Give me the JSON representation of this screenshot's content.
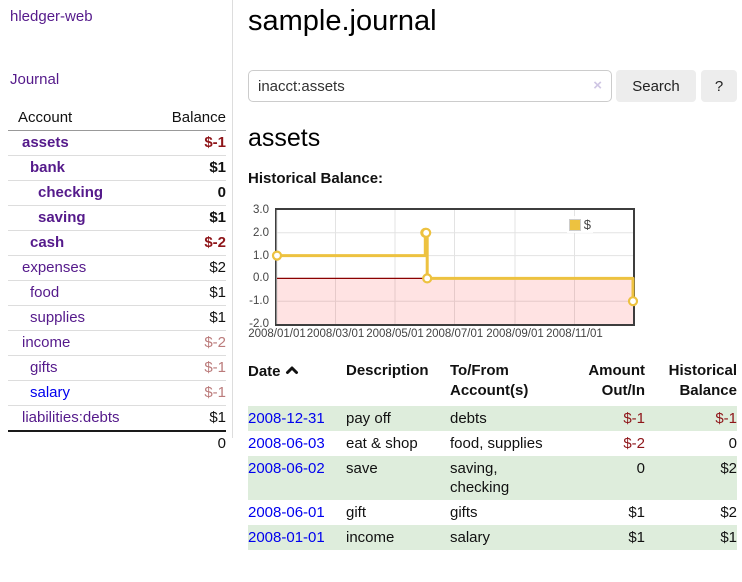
{
  "app": {
    "brand": "hledger-web",
    "nav": {
      "journal": "Journal"
    }
  },
  "sidebar": {
    "header": {
      "account": "Account",
      "balance": "Balance"
    },
    "rows": [
      {
        "account": "assets",
        "balance": "$-1"
      },
      {
        "account": "bank",
        "balance": "$1"
      },
      {
        "account": "checking",
        "balance": "0"
      },
      {
        "account": "saving",
        "balance": "$1"
      },
      {
        "account": "cash",
        "balance": "$-2"
      },
      {
        "account": "expenses",
        "balance": "$2"
      },
      {
        "account": "food",
        "balance": "$1"
      },
      {
        "account": "supplies",
        "balance": "$1"
      },
      {
        "account": "income",
        "balance": "$-2"
      },
      {
        "account": "gifts",
        "balance": "$-1"
      },
      {
        "account": "salary",
        "balance": "$-1"
      },
      {
        "account": "liabilities:debts",
        "balance": "$1"
      }
    ],
    "total": "0"
  },
  "header": {
    "title": "sample.journal"
  },
  "search": {
    "value": "inacct:assets",
    "clear_icon": "×",
    "button_label": "Search",
    "help_label": "?"
  },
  "main": {
    "account_title": "assets",
    "chart_label": "Historical Balance:"
  },
  "chart_data": {
    "type": "line",
    "step": true,
    "title": "Historical Balance",
    "series": [
      {
        "name": "$",
        "color": "#edc240",
        "points": [
          [
            "2008-01-01",
            1
          ],
          [
            "2008-06-01",
            2
          ],
          [
            "2008-06-02",
            2
          ],
          [
            "2008-06-03",
            0
          ],
          [
            "2008-12-31",
            -1
          ]
        ]
      }
    ],
    "xrange": [
      "2008-01-01",
      "2008-12-31"
    ],
    "xticks": [
      "2008/01/01",
      "2008/03/01",
      "2008/05/01",
      "2008/07/01",
      "2008/09/01",
      "2008/11/01"
    ],
    "yticks": [
      3.0,
      2.0,
      1.0,
      0.0,
      -1.0,
      -2.0
    ],
    "ylim": [
      -2,
      3
    ],
    "grid": true,
    "legend_position": "top-right",
    "negative_region_shaded": true
  },
  "transactions": {
    "columns": [
      "Date",
      "Description",
      "To/From Account(s)",
      "Amount Out/In",
      "Historical Balance"
    ],
    "sort": {
      "column": "Date",
      "direction": "ascending"
    },
    "rows": [
      {
        "date": "2008-12-31",
        "description": "pay off",
        "to_from": "debts",
        "amount": "$-1",
        "balance": "$-1"
      },
      {
        "date": "2008-06-03",
        "description": "eat & shop",
        "to_from": "food, supplies",
        "amount": "$-2",
        "balance": "0"
      },
      {
        "date": "2008-06-02",
        "description": "save",
        "to_from": "saving, checking",
        "amount": "0",
        "balance": "$2"
      },
      {
        "date": "2008-06-01",
        "description": "gift",
        "to_from": "gifts",
        "amount": "$1",
        "balance": "$2"
      },
      {
        "date": "2008-01-01",
        "description": "income",
        "to_from": "salary",
        "amount": "$1",
        "balance": "$1"
      }
    ]
  },
  "icons": {
    "sort": "chevron-up",
    "clear_search": "x-mark",
    "help": "question-mark"
  },
  "colors": {
    "purple_link": "#551a8b",
    "blue_link": "#0000ee",
    "negative_strong": "#8e1519",
    "negative_soft": "#bb7b7b",
    "row_stripe_green": "#deeddc",
    "series_yellow": "#edc240",
    "grid": "#e3e3e3",
    "zero_line": "#8b0000",
    "negative_area": "rgba(255,0,0,0.11)",
    "chart_border": "#3d3d3d",
    "button_bg": "#ededed"
  }
}
